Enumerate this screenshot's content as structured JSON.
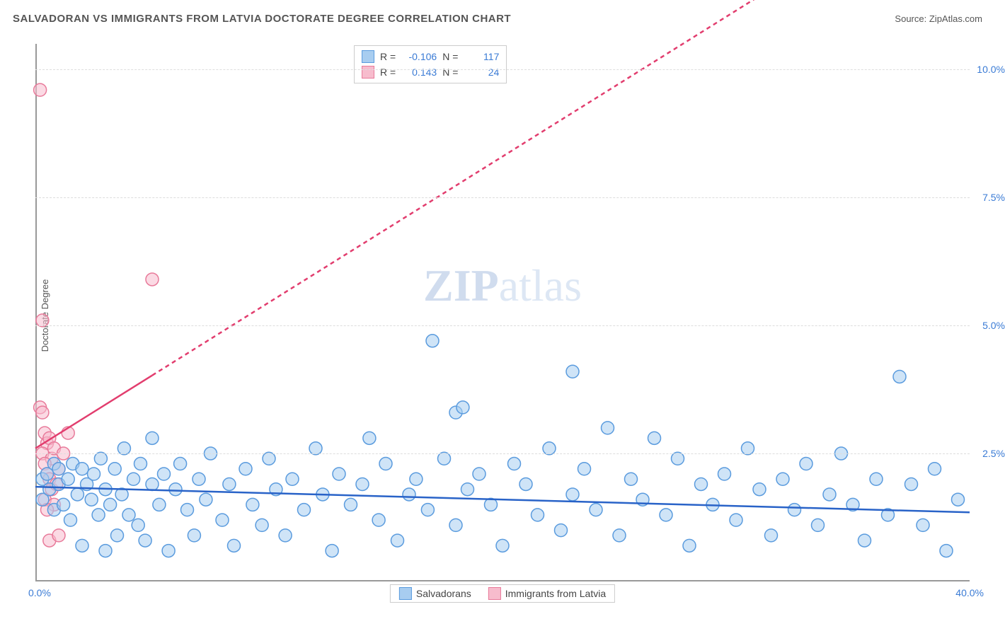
{
  "header": {
    "title": "SALVADORAN VS IMMIGRANTS FROM LATVIA DOCTORATE DEGREE CORRELATION CHART",
    "source_label": "Source:",
    "source_link": "ZipAtlas.com"
  },
  "chart": {
    "type": "scatter",
    "ylabel": "Doctorate Degree",
    "xlim": [
      0,
      40
    ],
    "ylim": [
      0,
      10.5
    ],
    "y_ticks": [
      2.5,
      5.0,
      7.5,
      10.0
    ],
    "y_tick_labels": [
      "2.5%",
      "5.0%",
      "7.5%",
      "10.0%"
    ],
    "x_tick_min_label": "0.0%",
    "x_tick_max_label": "40.0%",
    "background_color": "#ffffff",
    "grid_color": "#dddddd",
    "axis_color": "#999999",
    "watermark_text_1": "ZIP",
    "watermark_text_2": "atlas",
    "marker_radius": 9,
    "marker_stroke_width": 1.5,
    "trend_line_width": 2.5,
    "trend_dash": "6,5",
    "series": {
      "salvadorans": {
        "label": "Salvadorans",
        "fill": "#a8cdf0",
        "stroke": "#5a9bde",
        "fill_opacity": 0.55,
        "R": "-0.106",
        "N": "117",
        "trend_color": "#2963c8",
        "trend": {
          "x1": 0,
          "y1": 1.85,
          "x2": 40,
          "y2": 1.35
        },
        "points": [
          [
            0.3,
            2.0
          ],
          [
            0.3,
            1.6
          ],
          [
            0.5,
            2.1
          ],
          [
            0.6,
            1.8
          ],
          [
            0.8,
            2.3
          ],
          [
            0.8,
            1.4
          ],
          [
            1.0,
            1.9
          ],
          [
            1.0,
            2.2
          ],
          [
            1.2,
            1.5
          ],
          [
            1.4,
            2.0
          ],
          [
            1.5,
            1.2
          ],
          [
            1.6,
            2.3
          ],
          [
            1.8,
            1.7
          ],
          [
            2.0,
            2.2
          ],
          [
            2.0,
            0.7
          ],
          [
            2.2,
            1.9
          ],
          [
            2.4,
            1.6
          ],
          [
            2.5,
            2.1
          ],
          [
            2.7,
            1.3
          ],
          [
            2.8,
            2.4
          ],
          [
            3.0,
            0.6
          ],
          [
            3.0,
            1.8
          ],
          [
            3.2,
            1.5
          ],
          [
            3.4,
            2.2
          ],
          [
            3.5,
            0.9
          ],
          [
            3.7,
            1.7
          ],
          [
            3.8,
            2.6
          ],
          [
            4.0,
            1.3
          ],
          [
            4.2,
            2.0
          ],
          [
            4.4,
            1.1
          ],
          [
            4.5,
            2.3
          ],
          [
            4.7,
            0.8
          ],
          [
            5.0,
            1.9
          ],
          [
            5.0,
            2.8
          ],
          [
            5.3,
            1.5
          ],
          [
            5.5,
            2.1
          ],
          [
            5.7,
            0.6
          ],
          [
            6.0,
            1.8
          ],
          [
            6.2,
            2.3
          ],
          [
            6.5,
            1.4
          ],
          [
            6.8,
            0.9
          ],
          [
            7.0,
            2.0
          ],
          [
            7.3,
            1.6
          ],
          [
            7.5,
            2.5
          ],
          [
            8.0,
            1.2
          ],
          [
            8.3,
            1.9
          ],
          [
            8.5,
            0.7
          ],
          [
            9.0,
            2.2
          ],
          [
            9.3,
            1.5
          ],
          [
            9.7,
            1.1
          ],
          [
            10.0,
            2.4
          ],
          [
            10.3,
            1.8
          ],
          [
            10.7,
            0.9
          ],
          [
            11.0,
            2.0
          ],
          [
            11.5,
            1.4
          ],
          [
            12.0,
            2.6
          ],
          [
            12.3,
            1.7
          ],
          [
            12.7,
            0.6
          ],
          [
            13.0,
            2.1
          ],
          [
            13.5,
            1.5
          ],
          [
            14.0,
            1.9
          ],
          [
            14.3,
            2.8
          ],
          [
            14.7,
            1.2
          ],
          [
            15.0,
            2.3
          ],
          [
            15.5,
            0.8
          ],
          [
            16.0,
            1.7
          ],
          [
            16.3,
            2.0
          ],
          [
            16.8,
            1.4
          ],
          [
            17.0,
            4.7
          ],
          [
            17.5,
            2.4
          ],
          [
            18.0,
            1.1
          ],
          [
            18.0,
            3.3
          ],
          [
            18.3,
            3.4
          ],
          [
            18.5,
            1.8
          ],
          [
            19.0,
            2.1
          ],
          [
            19.5,
            1.5
          ],
          [
            20.0,
            0.7
          ],
          [
            20.5,
            2.3
          ],
          [
            21.0,
            1.9
          ],
          [
            21.5,
            1.3
          ],
          [
            22.0,
            2.6
          ],
          [
            22.5,
            1.0
          ],
          [
            23.0,
            4.1
          ],
          [
            23.0,
            1.7
          ],
          [
            23.5,
            2.2
          ],
          [
            24.0,
            1.4
          ],
          [
            24.5,
            3.0
          ],
          [
            25.0,
            0.9
          ],
          [
            25.5,
            2.0
          ],
          [
            26.0,
            1.6
          ],
          [
            26.5,
            2.8
          ],
          [
            27.0,
            1.3
          ],
          [
            27.5,
            2.4
          ],
          [
            28.0,
            0.7
          ],
          [
            28.5,
            1.9
          ],
          [
            29.0,
            1.5
          ],
          [
            29.5,
            2.1
          ],
          [
            30.0,
            1.2
          ],
          [
            30.5,
            2.6
          ],
          [
            31.0,
            1.8
          ],
          [
            31.5,
            0.9
          ],
          [
            32.0,
            2.0
          ],
          [
            32.5,
            1.4
          ],
          [
            33.0,
            2.3
          ],
          [
            33.5,
            1.1
          ],
          [
            34.0,
            1.7
          ],
          [
            34.5,
            2.5
          ],
          [
            35.0,
            1.5
          ],
          [
            35.5,
            0.8
          ],
          [
            36.0,
            2.0
          ],
          [
            36.5,
            1.3
          ],
          [
            37.0,
            4.0
          ],
          [
            37.5,
            1.9
          ],
          [
            38.0,
            1.1
          ],
          [
            38.5,
            2.2
          ],
          [
            39.0,
            0.6
          ],
          [
            39.5,
            1.6
          ]
        ]
      },
      "latvia": {
        "label": "Immigrants from Latvia",
        "fill": "#f7bccd",
        "stroke": "#e87a9a",
        "fill_opacity": 0.55,
        "R": "0.143",
        "N": "24",
        "trend_color": "#e23d6e",
        "trend": {
          "x1": 0,
          "y1": 2.6,
          "x2": 40,
          "y2": 14.0
        },
        "trend_solid_until_x": 5.0,
        "points": [
          [
            0.2,
            9.6
          ],
          [
            0.3,
            5.1
          ],
          [
            0.2,
            3.4
          ],
          [
            0.3,
            3.3
          ],
          [
            0.4,
            2.9
          ],
          [
            0.5,
            2.7
          ],
          [
            0.3,
            2.5
          ],
          [
            0.6,
            2.8
          ],
          [
            0.7,
            2.4
          ],
          [
            0.4,
            2.3
          ],
          [
            0.8,
            2.6
          ],
          [
            0.5,
            2.1
          ],
          [
            0.6,
            2.0
          ],
          [
            0.7,
            1.8
          ],
          [
            0.4,
            1.6
          ],
          [
            0.8,
            1.5
          ],
          [
            0.9,
            1.9
          ],
          [
            0.5,
            1.4
          ],
          [
            1.0,
            2.2
          ],
          [
            1.2,
            2.5
          ],
          [
            0.6,
            0.8
          ],
          [
            1.0,
            0.9
          ],
          [
            1.4,
            2.9
          ],
          [
            5.0,
            5.9
          ]
        ]
      }
    },
    "stat_box": {
      "r_label": "R =",
      "n_label": "N ="
    },
    "legend": {
      "salvadorans": "Salvadorans",
      "latvia": "Immigrants from Latvia"
    }
  }
}
